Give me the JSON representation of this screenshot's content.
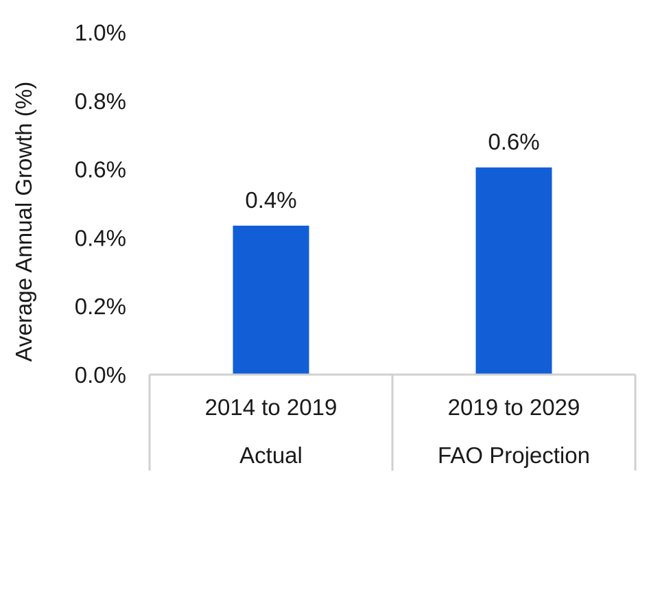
{
  "chart_data": {
    "type": "bar",
    "ylabel": "Average Annual Growth (%)",
    "ylim": [
      0,
      1.0
    ],
    "yticks": [
      {
        "value": 0.0,
        "label": "0.0%"
      },
      {
        "value": 0.2,
        "label": "0.2%"
      },
      {
        "value": 0.4,
        "label": "0.4%"
      },
      {
        "value": 0.6,
        "label": "0.6%"
      },
      {
        "value": 0.8,
        "label": "0.8%"
      },
      {
        "value": 1.0,
        "label": "1.0%"
      }
    ],
    "categories": [
      {
        "period": "2014 to 2019",
        "group": "Actual"
      },
      {
        "period": "2019 to 2029",
        "group": "FAO Projection"
      }
    ],
    "values": [
      0.435,
      0.605
    ],
    "data_labels": [
      "0.4%",
      "0.6%"
    ],
    "bar_color": "#115ED7",
    "grid": false,
    "legend": "none"
  }
}
